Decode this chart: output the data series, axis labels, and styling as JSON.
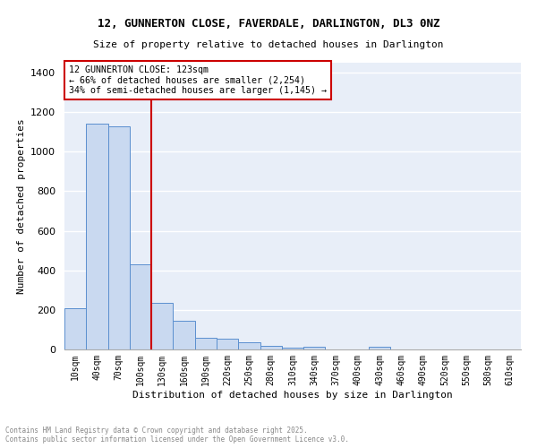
{
  "title_line1": "12, GUNNERTON CLOSE, FAVERDALE, DARLINGTON, DL3 0NZ",
  "title_line2": "Size of property relative to detached houses in Darlington",
  "xlabel": "Distribution of detached houses by size in Darlington",
  "ylabel": "Number of detached properties",
  "bar_color": "#c9d9f0",
  "bar_edge_color": "#5b8fcf",
  "categories": [
    "10sqm",
    "40sqm",
    "70sqm",
    "100sqm",
    "130sqm",
    "160sqm",
    "190sqm",
    "220sqm",
    "250sqm",
    "280sqm",
    "310sqm",
    "340sqm",
    "370sqm",
    "400sqm",
    "430sqm",
    "460sqm",
    "490sqm",
    "520sqm",
    "550sqm",
    "580sqm",
    "610sqm"
  ],
  "values": [
    210,
    1140,
    1130,
    430,
    235,
    145,
    60,
    55,
    35,
    20,
    10,
    15,
    0,
    0,
    12,
    0,
    0,
    0,
    0,
    0,
    0
  ],
  "annotation_title": "12 GUNNERTON CLOSE: 123sqm",
  "annotation_line2": "← 66% of detached houses are smaller (2,254)",
  "annotation_line3": "34% of semi-detached houses are larger (1,145) →",
  "annotation_box_color": "#ffffff",
  "annotation_box_edge_color": "#cc0000",
  "ylim": [
    0,
    1450
  ],
  "yticks": [
    0,
    200,
    400,
    600,
    800,
    1000,
    1200,
    1400
  ],
  "fig_bg_color": "#ffffff",
  "ax_bg_color": "#e8eef8",
  "grid_color": "#ffffff",
  "footnote_line1": "Contains HM Land Registry data © Crown copyright and database right 2025.",
  "footnote_line2": "Contains public sector information licensed under the Open Government Licence v3.0."
}
